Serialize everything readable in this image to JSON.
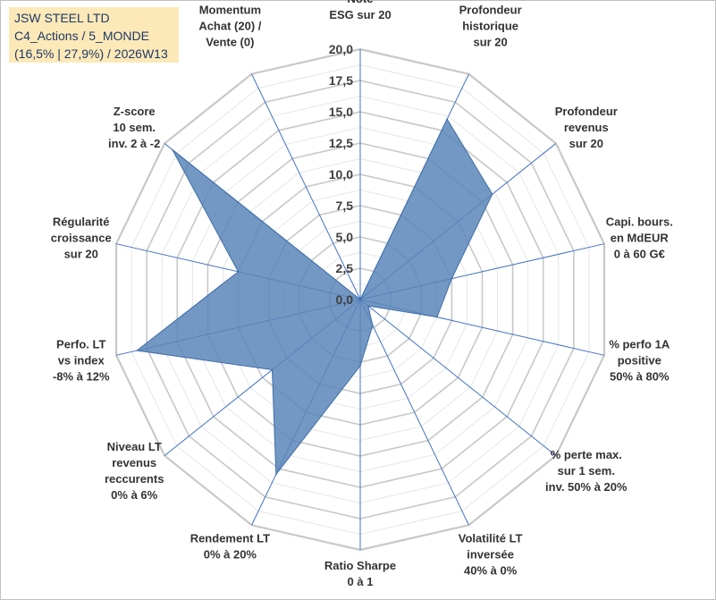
{
  "header": {
    "line1": "JSW STEEL LTD",
    "line2": "C4_Actions / 5_MONDE",
    "line3": "(16,5% | 27,9%) / 2026W13"
  },
  "chart_data": {
    "type": "radar",
    "title": "JSW STEEL LTD",
    "r_range": [
      0,
      20
    ],
    "tick_values": [
      0,
      2.5,
      5,
      7.5,
      10,
      12.5,
      15,
      17.5,
      20
    ],
    "tick_labels": [
      "0,0",
      "2,5",
      "5,0",
      "7,5",
      "10,0",
      "12,5",
      "15,0",
      "17,5",
      "20,0"
    ],
    "axes": [
      {
        "label": [
          "Note",
          "ESG sur 20"
        ],
        "value": 0
      },
      {
        "label": [
          "Profondeur",
          "historique",
          "sur 20"
        ],
        "value": 16
      },
      {
        "label": [
          "Profondeur",
          "revenus",
          "sur 20"
        ],
        "value": 13.5
      },
      {
        "label": [
          "Capi. bours.",
          "en MdEUR",
          "0 à 60 G€"
        ],
        "value": 7.5
      },
      {
        "label": [
          "% perfo 1A",
          "positive",
          "50% à 80%"
        ],
        "value": 6.3
      },
      {
        "label": [
          "% perte max.",
          "sur 1 sem.",
          "inv. 50% à 20%"
        ],
        "value": 0.8
      },
      {
        "label": [
          "Volatilité LT",
          "inversée",
          "40% à 0%"
        ],
        "value": 2.3
      },
      {
        "label": [
          "Ratio Sharpe",
          "0 à 1"
        ],
        "value": 5.3
      },
      {
        "label": [
          "Rendement LT",
          "0% à 20%"
        ],
        "value": 15.5
      },
      {
        "label": [
          "Niveau LT",
          "revenus",
          "reccurents",
          "0% à 6%"
        ],
        "value": 9
      },
      {
        "label": [
          "Perfo. LT",
          "vs index",
          "-8% à 12%"
        ],
        "value": 18.3
      },
      {
        "label": [
          "Régularité",
          "croissance",
          "sur 20"
        ],
        "value": 10
      },
      {
        "label": [
          "Z-score",
          "10 sem.",
          "inv. 2 à -2"
        ],
        "value": 19.2
      },
      {
        "label": [
          "Momentum",
          "Achat (20) /",
          "Vente (0)"
        ],
        "value": 0
      }
    ],
    "colors": {
      "fill": "#5b86b8",
      "stroke": "#3f6ea8",
      "grid": "#c8c8c8",
      "spoke": "#4472c4"
    }
  }
}
